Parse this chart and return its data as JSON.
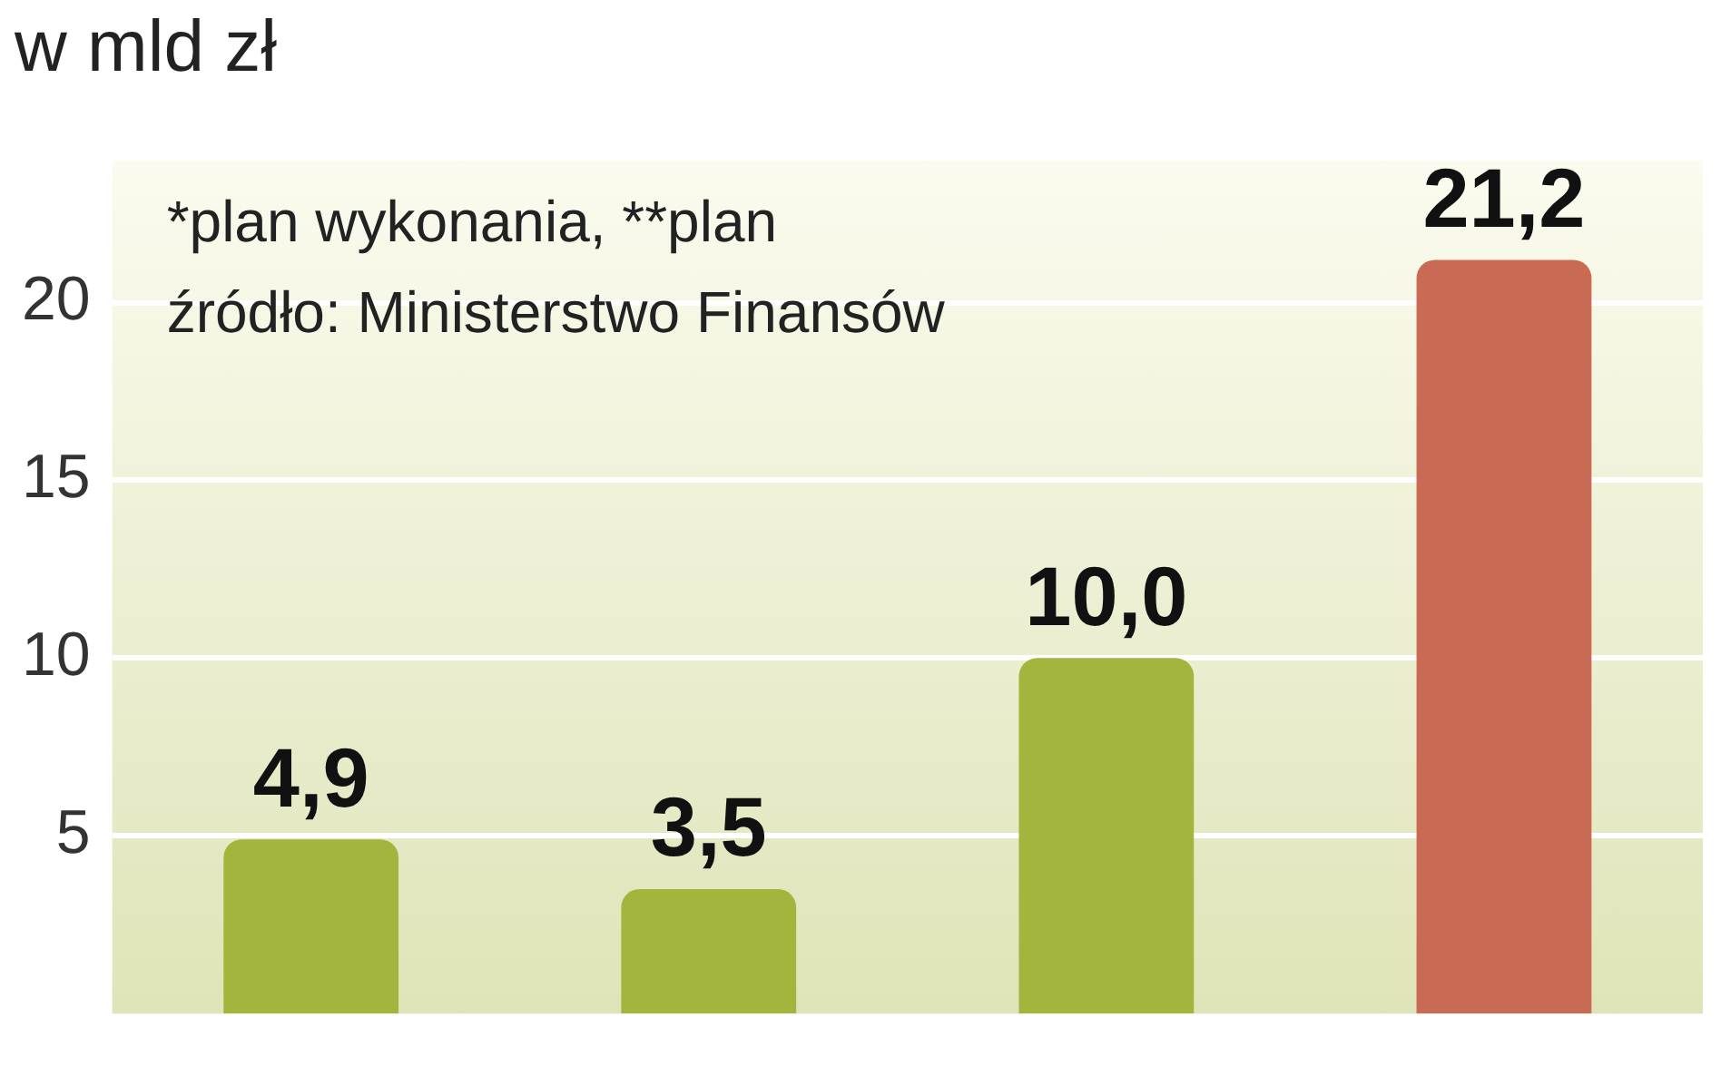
{
  "chart_data": {
    "type": "bar",
    "title": "w mld zł",
    "categories": [
      null,
      null,
      null,
      null
    ],
    "values": [
      4.9,
      3.5,
      10.0,
      21.2
    ],
    "colors": [
      "#a4b43c",
      "#a4b43c",
      "#a4b43c",
      "#c96a55"
    ],
    "value_labels": [
      "4,9",
      "3,5",
      "10,0",
      "21,2"
    ],
    "ylim": [
      0,
      24
    ],
    "yticks": [
      5,
      10,
      15,
      20
    ],
    "grid": "y",
    "tick_labels": "y",
    "annotations": [
      "*plan wykonania, **plan",
      "źródło: Ministerstwo Finansów"
    ]
  }
}
